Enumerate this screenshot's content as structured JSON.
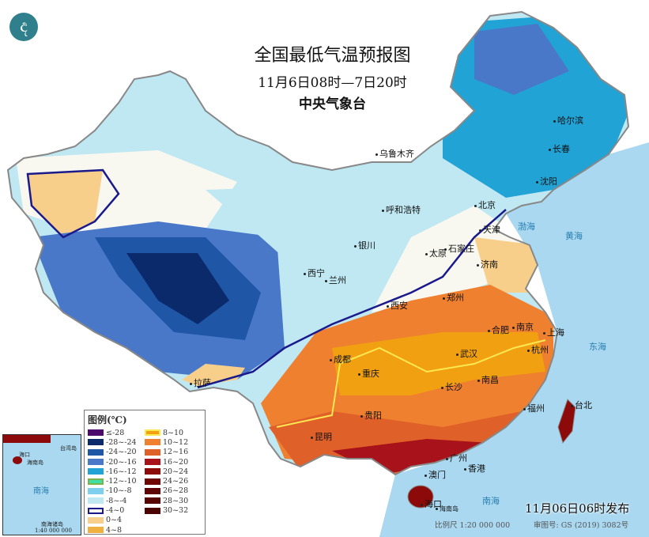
{
  "header": {
    "title": "全国最低气温预报图",
    "period": "11月6日08时—7日20时",
    "issuer": "中央气象台",
    "logo_icon": "cma-dragon-logo"
  },
  "cities": [
    "乌鲁木齐",
    "哈尔滨",
    "长春",
    "沈阳",
    "北京",
    "天津",
    "呼和浩特",
    "石家庄",
    "太原",
    "银川",
    "济南",
    "西宁",
    "兰州",
    "西安",
    "郑州",
    "合肥",
    "南京",
    "上海",
    "杭州",
    "武汉",
    "成都",
    "重庆",
    "拉萨",
    "长沙",
    "南昌",
    "贵阳",
    "福州",
    "台北",
    "昆明",
    "广州",
    "澳门",
    "香港",
    "海口",
    "海南岛"
  ],
  "seas": [
    "渤海",
    "黄海",
    "东海",
    "南海"
  ],
  "legend": {
    "title": "图例(℃)",
    "items": [
      {
        "label": "≤-28",
        "color": "#4b0a6b"
      },
      {
        "label": "-28~-24",
        "color": "#0b2a6b"
      },
      {
        "label": "-24~-20",
        "color": "#1f56a6"
      },
      {
        "label": "-20~-16",
        "color": "#4a78c9"
      },
      {
        "label": "-16~-12",
        "color": "#21a3d6"
      },
      {
        "label": "-12~-10",
        "color": "#3ee0a8",
        "border": "#7fb34a"
      },
      {
        "label": "-10~-8",
        "color": "#7fd0ef"
      },
      {
        "label": "-8~-4",
        "color": "#bfe8f3"
      },
      {
        "label": "-4~0",
        "color": "#f8f8f0",
        "border": "#1a1a8c"
      },
      {
        "label": "0~4",
        "color": "#f8cf8a"
      },
      {
        "label": "4~8",
        "color": "#f0b040"
      },
      {
        "label": "8~10",
        "color": "#f0a010",
        "border": "#ffe850"
      },
      {
        "label": "10~12",
        "color": "#ef8030"
      },
      {
        "label": "12~16",
        "color": "#e0602a"
      },
      {
        "label": "16~20",
        "color": "#a8121a"
      },
      {
        "label": "20~24",
        "color": "#8c0a0a"
      },
      {
        "label": "24~26",
        "color": "#6e0606"
      },
      {
        "label": "26~28",
        "color": "#5e0404"
      },
      {
        "label": "28~30",
        "color": "#560404"
      },
      {
        "label": "30~32",
        "color": "#4a0202"
      }
    ]
  },
  "inset": {
    "labels": [
      "海口",
      "海南岛",
      "台湾岛",
      "南海",
      "南海诸岛"
    ],
    "scale": "1:40 000 000"
  },
  "footer": {
    "issued": "11月06日06时发布",
    "scale": "比例尺 1:20 000 000",
    "approval": "审图号: GS (2019) 3082号"
  }
}
